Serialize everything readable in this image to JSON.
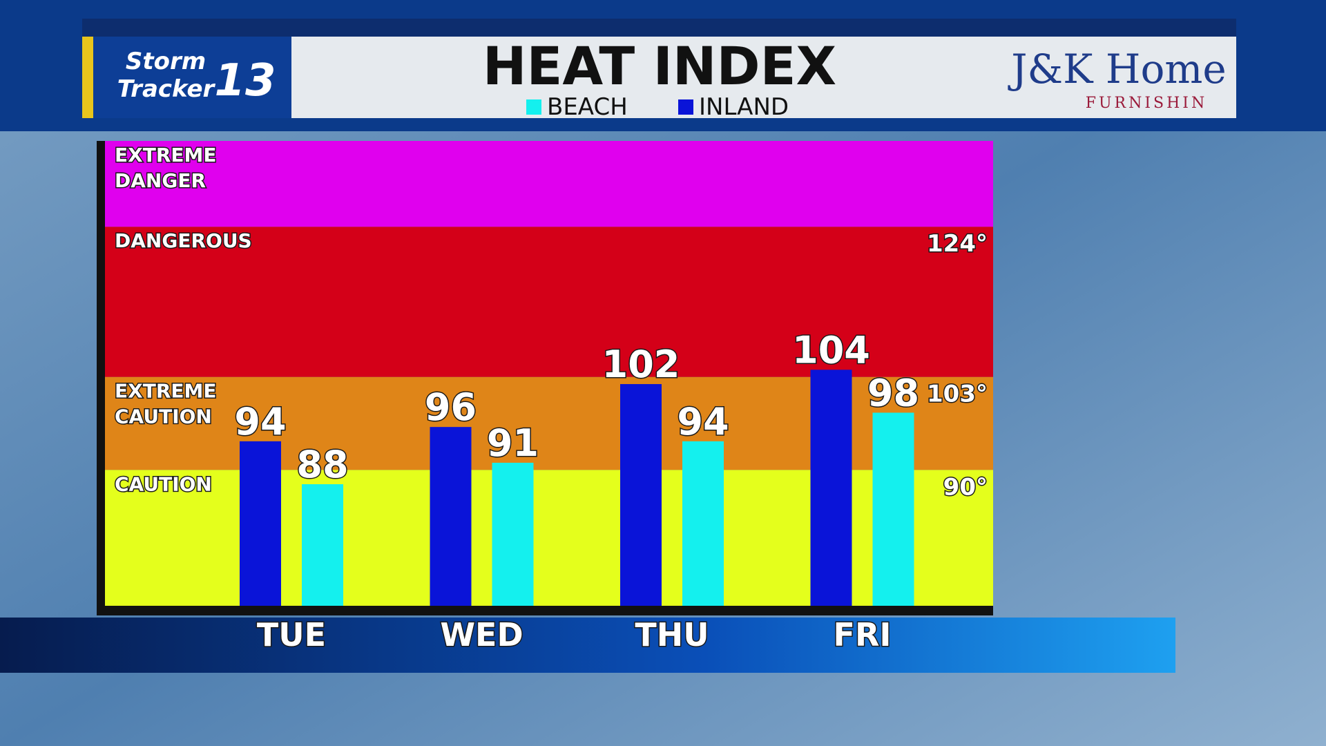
{
  "logo": {
    "line1": "Storm",
    "line2": "Tracker",
    "number": "13"
  },
  "sponsor": {
    "name": "J&K Home",
    "tagline": "FURNISHIN"
  },
  "chart_data": {
    "type": "bar",
    "title": "HEAT INDEX",
    "categories": [
      "TUE",
      "WED",
      "THU",
      "FRI"
    ],
    "series": [
      {
        "name": "BEACH",
        "color": "#14f0ee",
        "values": [
          88,
          91,
          94,
          98
        ]
      },
      {
        "name": "INLAND",
        "color": "#0a14d8",
        "values": [
          94,
          96,
          102,
          104
        ]
      }
    ],
    "ylim": [
      71,
      136
    ],
    "yticks": [
      {
        "value": 90,
        "label": "90°"
      },
      {
        "value": 103,
        "label": "103°"
      },
      {
        "value": 124,
        "label": "124°"
      }
    ],
    "zones": [
      {
        "label": "CAUTION",
        "color": "#e4ff1c"
      },
      {
        "label": "EXTREME CAUTION",
        "color": "#df8518"
      },
      {
        "label": "DANGEROUS",
        "color": "#d40018"
      },
      {
        "label": "EXTREME DANGER",
        "color": "#e000ee"
      }
    ]
  }
}
